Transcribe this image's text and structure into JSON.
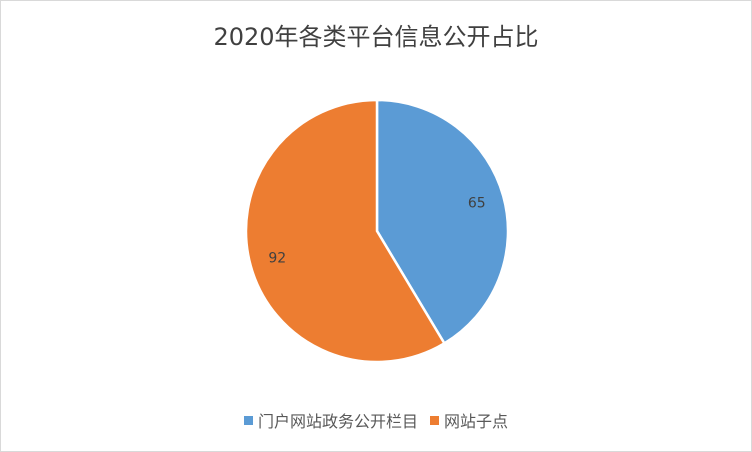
{
  "chart_data": {
    "type": "pie",
    "title": "2020年各类平台信息公开占比",
    "series": [
      {
        "name": "门户网站政务公开栏目",
        "value": 65,
        "color": "#5b9bd5"
      },
      {
        "name": "网站子点",
        "value": 92,
        "color": "#ed7d31"
      }
    ],
    "legend_position": "bottom"
  }
}
